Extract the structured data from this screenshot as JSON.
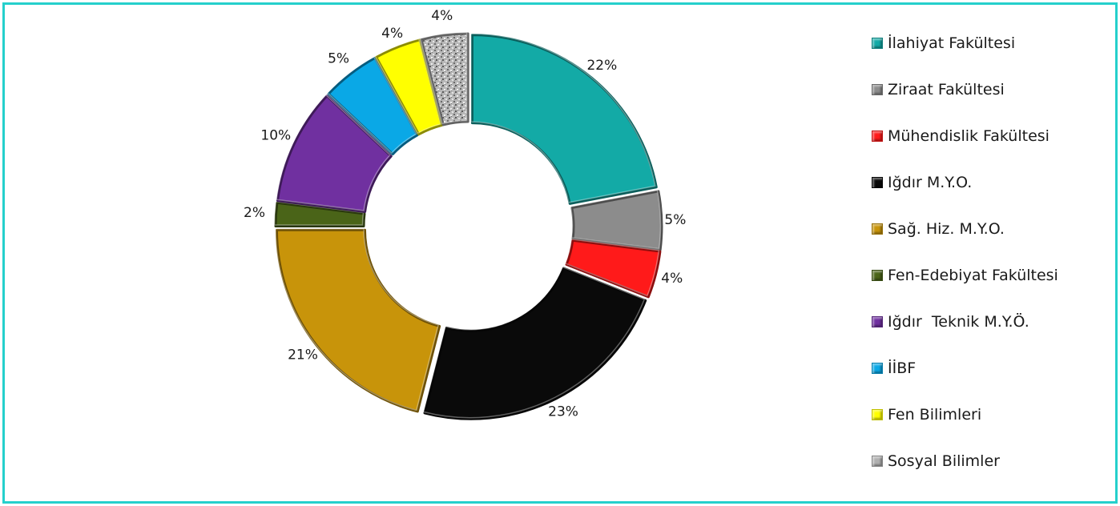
{
  "chart_data": {
    "type": "pie",
    "style": "doughnut, exploded slices",
    "legend_position": "right",
    "categories": [
      "İlahiyat Fakültesi",
      "Ziraat Fakültesi",
      "Mühendislik Fakültesi",
      "Iğdır M.Y.O.",
      "Sağ. Hiz. M.Y.O.",
      "Fen-Edebiyat Fakültesi",
      "Iğdır  Teknik M.Y.Ö.",
      "İİBF",
      "Fen Bilimleri",
      "Sosyal Bilimler"
    ],
    "values": [
      22,
      5,
      4,
      23,
      21,
      2,
      10,
      5,
      4,
      4
    ],
    "data_labels": [
      "22%",
      "5%",
      "4%",
      "23%",
      "21%",
      "2%",
      "10%",
      "5%",
      "4%",
      "4%"
    ],
    "colors": [
      "#13aaa6",
      "#8c8c8c",
      "#ff1a1a",
      "#0a0a0a",
      "#c8940a",
      "#4a6418",
      "#7030a0",
      "#0aa8e6",
      "#ffff00",
      "#b0b0b0"
    ]
  }
}
